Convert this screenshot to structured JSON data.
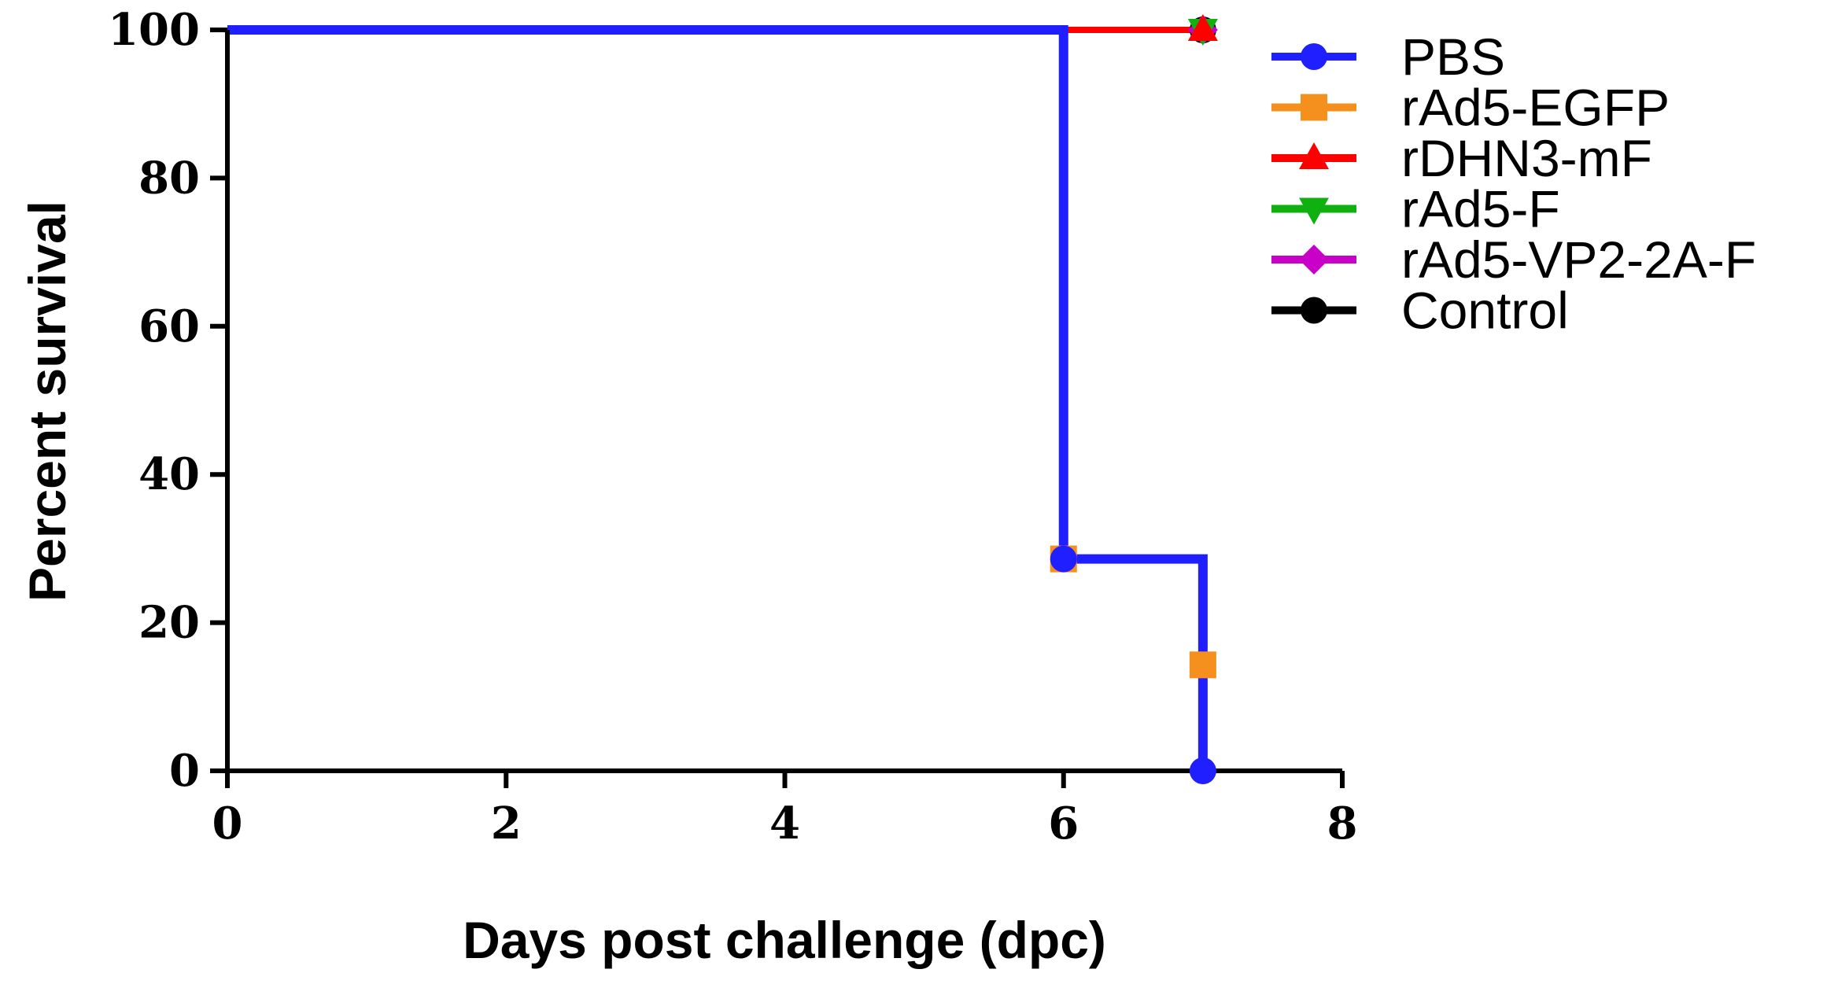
{
  "chart_data": {
    "type": "line",
    "title": "",
    "xlabel": "Days post challenge (dpc)",
    "ylabel": "Percent survival",
    "xlim": [
      0,
      8
    ],
    "ylim": [
      0,
      100
    ],
    "x_ticks": [
      "0",
      "2",
      "4",
      "6",
      "8"
    ],
    "y_ticks": [
      "0",
      "20",
      "40",
      "60",
      "80",
      "100"
    ],
    "grid": false,
    "legend_position": "right",
    "series": [
      {
        "name": "PBS",
        "color": "#1f1fff",
        "marker": "circle",
        "steps": [
          [
            0,
            100
          ],
          [
            6,
            100
          ],
          [
            6,
            28.6
          ],
          [
            7,
            28.6
          ],
          [
            7,
            0
          ]
        ],
        "points": [
          [
            6,
            28.6
          ],
          [
            7,
            0
          ]
        ]
      },
      {
        "name": "rAd5-EGFP",
        "color": "#f5901e",
        "marker": "square",
        "steps": [
          [
            0,
            100
          ],
          [
            6,
            100
          ],
          [
            6,
            28.6
          ],
          [
            7,
            28.6
          ],
          [
            7,
            14.3
          ]
        ],
        "points": [
          [
            6,
            28.6
          ],
          [
            7,
            14.3
          ]
        ]
      },
      {
        "name": "rDHN3-mF",
        "color": "#ff0000",
        "marker": "triangle-up",
        "steps": [
          [
            0,
            100
          ],
          [
            7,
            100
          ]
        ],
        "points": [
          [
            7,
            100
          ]
        ]
      },
      {
        "name": "rAd5-F",
        "color": "#10b010",
        "marker": "triangle-down",
        "steps": [
          [
            0,
            100
          ],
          [
            7,
            100
          ]
        ],
        "points": [
          [
            7,
            100
          ]
        ]
      },
      {
        "name": "rAd5-VP2-2A-F",
        "color": "#c800c8",
        "marker": "diamond",
        "steps": [
          [
            0,
            100
          ],
          [
            7,
            100
          ]
        ],
        "points": [
          [
            7,
            100
          ]
        ]
      },
      {
        "name": "Control",
        "color": "#000000",
        "marker": "circle",
        "steps": [
          [
            0,
            100
          ],
          [
            7,
            100
          ]
        ],
        "points": [
          [
            7,
            100
          ]
        ]
      }
    ]
  }
}
